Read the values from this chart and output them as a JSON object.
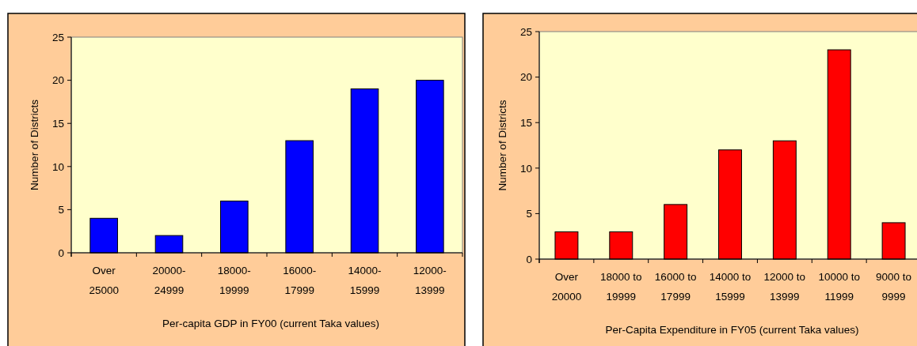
{
  "chart_data": [
    {
      "type": "bar",
      "xlabel": "Per-capita GDP in FY00 (current Taka values)",
      "ylabel": "Number of Districts",
      "categories": [
        "Over 25000",
        "20000-24999",
        "18000-19999",
        "16000-17999",
        "14000-15999",
        "12000-13999"
      ],
      "values": [
        4,
        2,
        6,
        13,
        19,
        20
      ],
      "color": "#0000ff",
      "ylim": [
        0,
        25
      ],
      "yticks": [
        0,
        5,
        10,
        15,
        20,
        25
      ],
      "grid": false
    },
    {
      "type": "bar",
      "xlabel": "Per-Capita Expenditure in FY05 (current Taka values)",
      "ylabel": "Number of Districts",
      "categories": [
        "Over 20000",
        "18000 to 19999",
        "16000 to 17999",
        "14000 to 15999",
        "12000 to 13999",
        "10000 to 11999",
        "9000 to 9999"
      ],
      "values": [
        3,
        3,
        6,
        12,
        13,
        23,
        4
      ],
      "color": "#ff0000",
      "ylim": [
        0,
        25
      ],
      "yticks": [
        0,
        5,
        10,
        15,
        20,
        25
      ],
      "grid": false
    }
  ]
}
